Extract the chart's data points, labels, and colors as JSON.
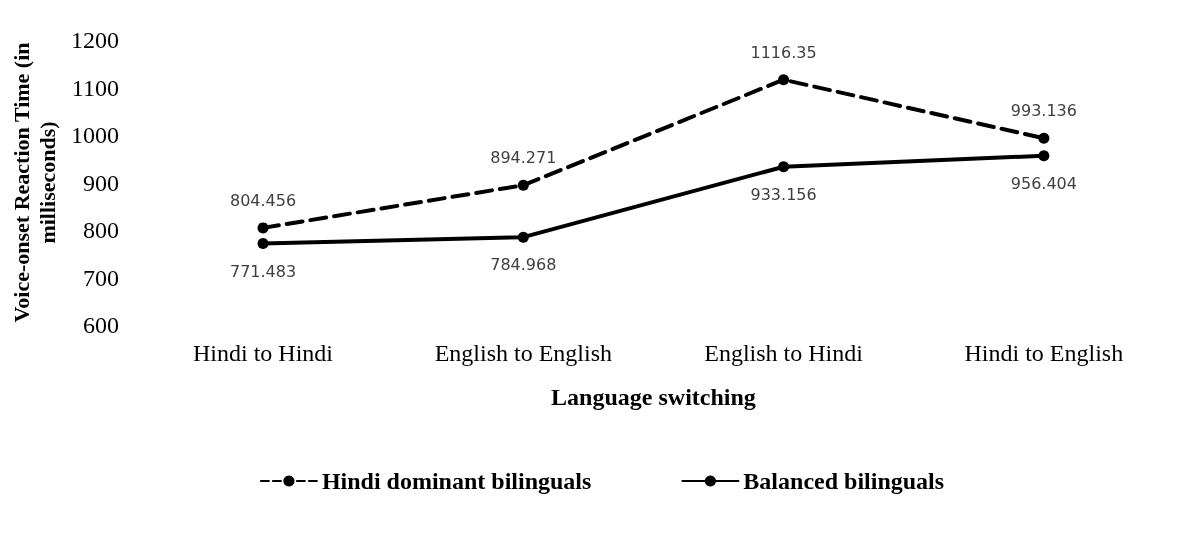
{
  "chart_data": {
    "type": "line",
    "xlabel": "Language switching",
    "ylabel": "Voice-onset Reaction Time (in milliseconds)",
    "categories": [
      "Hindi to Hindi",
      "English to English",
      "English to Hindi",
      "Hindi to English"
    ],
    "series": [
      {
        "name": "Hindi dominant bilinguals",
        "color": "#000000",
        "line_style": "dashed",
        "values": [
          804.456,
          894.271,
          1116.35,
          993.136
        ]
      },
      {
        "name": "Balanced bilinguals",
        "color": "#000000",
        "line_style": "solid",
        "values": [
          771.483,
          784.968,
          933.156,
          956.404
        ]
      }
    ],
    "ylim": [
      600,
      1200
    ],
    "yticks": [
      600,
      700,
      800,
      900,
      1000,
      1100,
      1200
    ],
    "grid": false,
    "legend": "bottom",
    "marker": "circle",
    "data_labels": true
  }
}
